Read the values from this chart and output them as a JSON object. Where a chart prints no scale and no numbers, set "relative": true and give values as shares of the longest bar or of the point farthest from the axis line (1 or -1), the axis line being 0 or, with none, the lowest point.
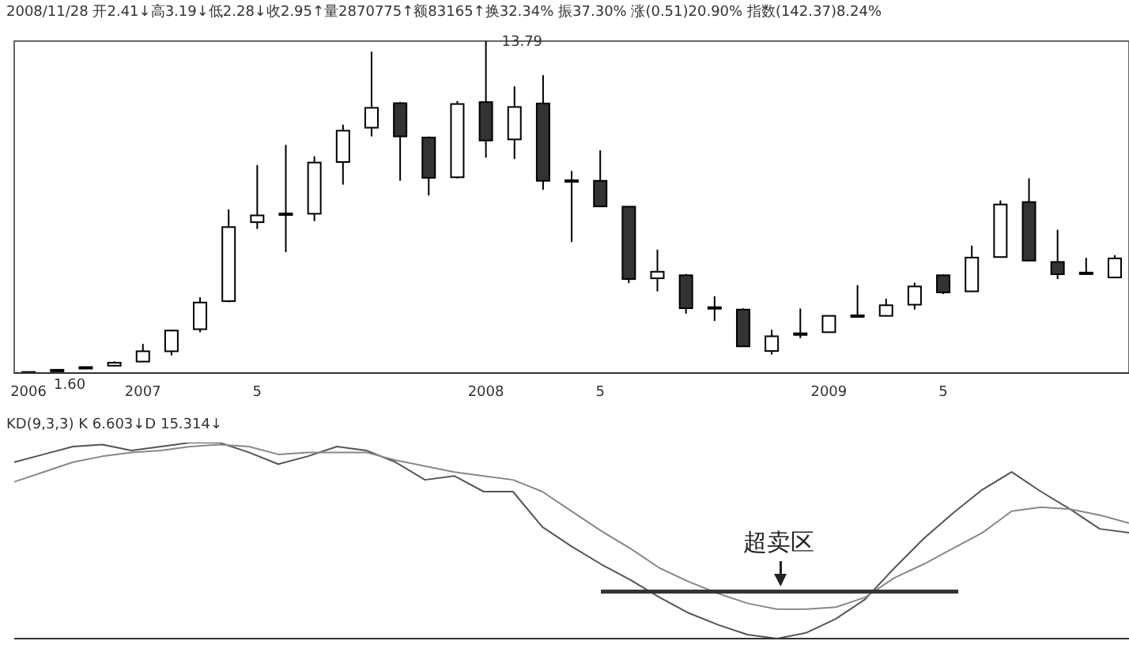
{
  "chart_data": [
    {
      "type": "candlestick",
      "title": "2008/11/28 开2.41↓高3.19↓低2.28↓收2.95↑量2870775↑额83165↑换32.34% 振37.30% 涨(0.51)20.90% 指数(142.37)8.24%",
      "categories": [
        "2006",
        null,
        null,
        null,
        "2007",
        null,
        null,
        null,
        "5",
        null,
        null,
        null,
        null,
        null,
        null,
        null,
        "2008",
        null,
        null,
        null,
        "5",
        null,
        null,
        null,
        null,
        null,
        null,
        null,
        "2009",
        null,
        null,
        null,
        "5",
        null,
        null,
        null,
        null,
        null,
        null
      ],
      "ohlc": [
        [
          1.62,
          1.66,
          1.6,
          1.64
        ],
        [
          1.7,
          1.74,
          1.68,
          1.72
        ],
        [
          1.78,
          1.84,
          1.76,
          1.82
        ],
        [
          1.87,
          2.03,
          1.85,
          1.98
        ],
        [
          2.02,
          2.67,
          2,
          2.4
        ],
        [
          2.4,
          3.2,
          2.25,
          3.16
        ],
        [
          3.21,
          4.38,
          3.1,
          4.19
        ],
        [
          4.24,
          7.61,
          4.2,
          6.96
        ],
        [
          7.14,
          9.24,
          6.89,
          7.39
        ],
        [
          7.42,
          9.98,
          6.04,
          7.46
        ],
        [
          7.45,
          9.56,
          7.18,
          9.33
        ],
        [
          9.35,
          10.72,
          8.52,
          10.5
        ],
        [
          10.61,
          13.4,
          10.29,
          11.34
        ],
        [
          11.51,
          11.55,
          8.66,
          10.29
        ],
        [
          10.25,
          10.29,
          8.12,
          8.77
        ],
        [
          8.79,
          11.59,
          8.75,
          11.48
        ],
        [
          11.55,
          13.79,
          9.51,
          10.14
        ],
        [
          10.18,
          12.13,
          9.46,
          11.37
        ],
        [
          11.5,
          12.54,
          8.33,
          8.66
        ],
        [
          8.64,
          9.02,
          6.41,
          8.68
        ],
        [
          8.66,
          9.78,
          7.7,
          7.72
        ],
        [
          7.71,
          7.73,
          4.9,
          5.05
        ],
        [
          5.08,
          6.13,
          4.6,
          5.32
        ],
        [
          5.19,
          5.24,
          3.78,
          3.98
        ],
        [
          3.98,
          4.42,
          3.51,
          4.02
        ],
        [
          3.93,
          3.98,
          2.56,
          2.58
        ],
        [
          2.41,
          3.19,
          2.28,
          2.95
        ],
        [
          3,
          3.97,
          2.88,
          3.06
        ],
        [
          3.1,
          3.72,
          3.08,
          3.7
        ],
        [
          3.68,
          4.83,
          3.66,
          3.72
        ],
        [
          3.7,
          4.33,
          3.68,
          4.09
        ],
        [
          4.11,
          4.92,
          3.93,
          4.78
        ],
        [
          5.19,
          5.23,
          4.5,
          4.56
        ],
        [
          4.6,
          6.28,
          4.58,
          5.84
        ],
        [
          5.86,
          7.94,
          5.84,
          7.79
        ],
        [
          7.88,
          8.75,
          5.7,
          5.73
        ],
        [
          5.68,
          6.86,
          5.05,
          5.23
        ],
        [
          5.25,
          5.83,
          5.23,
          5.29
        ],
        [
          5.11,
          5.93,
          5.09,
          5.81
        ]
      ],
      "colors": [
        "#ffffff",
        "#ffffff",
        "#ffffff",
        "#ffffff",
        "#ffffff",
        "#ffffff",
        "#ffffff",
        "#ffffff",
        "#ffffff",
        "#ffffff",
        "#ffffff",
        "#ffffff",
        "#ffffff",
        "#333333",
        "#333333",
        "#ffffff",
        "#333333",
        "#ffffff",
        "#333333",
        "#ffffff",
        "#333333",
        "#333333",
        "#ffffff",
        "#333333",
        "#ffffff",
        "#333333",
        "#ffffff",
        "#ffffff",
        "#ffffff",
        "#ffffff",
        "#ffffff",
        "#ffffff",
        "#333333",
        "#ffffff",
        "#ffffff",
        "#333333",
        "#333333",
        "#ffffff",
        "#ffffff"
      ],
      "annotations": [
        "13.79",
        "1.60"
      ],
      "ylim": [
        1.6,
        13.79
      ]
    },
    {
      "type": "line",
      "title": "KD(9,3,3) K 6.603↓D 15.314↓",
      "relative": true,
      "marker": "none",
      "line_style": "solid",
      "categories": [
        null,
        null,
        null,
        null,
        null,
        null,
        null,
        null,
        null,
        null,
        null,
        null,
        null,
        null,
        null,
        null,
        null,
        null,
        null,
        null,
        null,
        null,
        null,
        null,
        null,
        null,
        null,
        null,
        null,
        null,
        null,
        null,
        null,
        null,
        null,
        null,
        null,
        null,
        null
      ],
      "series": [
        {
          "color": "#555555",
          "values": [
            0.9,
            0.94,
            0.98,
            0.99,
            0.96,
            0.98,
            1,
            1,
            0.95,
            0.89,
            0.93,
            0.98,
            0.96,
            0.9,
            0.81,
            0.83,
            0.75,
            0.75,
            0.57,
            0.47,
            0.38,
            0.3,
            0.21,
            0.13,
            0.07,
            0.02,
            0,
            0.03,
            0.1,
            0.2,
            0.36,
            0.51,
            0.64,
            0.76,
            0.85,
            0.75,
            0.66,
            0.56,
            0.54
          ]
        },
        {
          "color": "#888888",
          "values": [
            0.8,
            0.85,
            0.9,
            0.93,
            0.95,
            0.96,
            0.98,
            0.99,
            0.98,
            0.94,
            0.95,
            0.95,
            0.95,
            0.91,
            0.88,
            0.85,
            0.83,
            0.81,
            0.75,
            0.65,
            0.55,
            0.46,
            0.36,
            0.29,
            0.23,
            0.18,
            0.15,
            0.15,
            0.16,
            0.21,
            0.31,
            0.38,
            0.46,
            0.54,
            0.65,
            0.67,
            0.66,
            0.63,
            0.59
          ]
        }
      ],
      "annotations": [
        "超卖区"
      ]
    }
  ]
}
